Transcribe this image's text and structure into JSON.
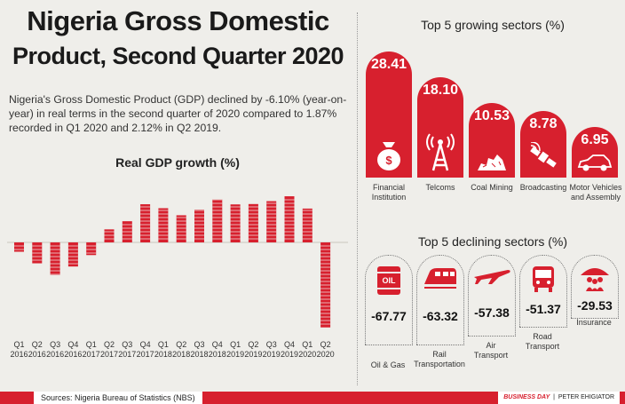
{
  "header": {
    "title_line1": "Nigeria Gross Domestic",
    "title_line2": "Product, Second Quarter 2020",
    "description": "Nigeria's Gross Domestic Product (GDP) declined by -6.10% (year-on-year) in real terms in the second quarter of 2020 compared to 1.87% recorded in Q1 2020 and 2.12% in Q2 2019."
  },
  "colors": {
    "positive": "#d7202e",
    "negative": "#d7202e",
    "background": "#efeeea"
  },
  "chart_data": [
    {
      "type": "bar",
      "title": "Real GDP growth (%)",
      "categories": [
        "Q1 2016",
        "Q2 2016",
        "Q3 2016",
        "Q4 2016",
        "Q1 2017",
        "Q2 2017",
        "Q3 2017",
        "Q4 2017",
        "Q1 2018",
        "Q2 2018",
        "Q3 2018",
        "Q4 2018",
        "Q1 2019",
        "Q2 2019",
        "Q3 2019",
        "Q4 2019",
        "Q1 2020",
        "Q2 2020"
      ],
      "category_labels": [
        [
          "Q1",
          "2016"
        ],
        [
          "Q2",
          "2016"
        ],
        [
          "Q3",
          "2016"
        ],
        [
          "Q4",
          "2016"
        ],
        [
          "Q1",
          "2017"
        ],
        [
          "Q2",
          "2017"
        ],
        [
          "Q3",
          "2017"
        ],
        [
          "Q4",
          "2017"
        ],
        [
          "Q1",
          "2018"
        ],
        [
          "Q2",
          "2018"
        ],
        [
          "Q3",
          "2018"
        ],
        [
          "Q4",
          "2018"
        ],
        [
          "Q1",
          "2019"
        ],
        [
          "Q2",
          "2019"
        ],
        [
          "Q3",
          "2019"
        ],
        [
          "Q4",
          "2019"
        ],
        [
          "Q1",
          "2020"
        ],
        [
          "Q2",
          "2020"
        ]
      ],
      "values": [
        -0.67,
        -1.5,
        -2.34,
        -1.73,
        -0.91,
        0.72,
        1.17,
        2.11,
        1.89,
        1.5,
        1.81,
        2.38,
        2.1,
        2.12,
        2.28,
        2.55,
        1.87,
        -6.1
      ],
      "ylim": [
        -6.5,
        2.7
      ],
      "xlabel": "",
      "ylabel": ""
    },
    {
      "type": "bar",
      "title": "Top 5 growing sectors (%)",
      "categories": [
        "Financial Institution",
        "Telcoms",
        "Coal Mining",
        "Broadcasting",
        "Motor Vehicles and Assembly"
      ],
      "values": [
        28.41,
        18.1,
        10.53,
        8.78,
        6.95
      ],
      "value_labels": [
        "28.41",
        "18.10",
        "10.53",
        "8.78",
        "6.95"
      ]
    },
    {
      "type": "bar",
      "title": "Top 5 declining sectors (%)",
      "categories": [
        "Oil & Gas",
        "Rail Transportation",
        "Air Transport",
        "Road Transport",
        "Insurance"
      ],
      "values": [
        -67.77,
        -63.32,
        -57.38,
        -51.37,
        -29.53
      ],
      "value_labels": [
        "-67.77",
        "-63.32",
        "-57.38",
        "-51.37",
        "-29.53"
      ]
    }
  ],
  "growing": {
    "title": "Top 5 growing sectors (%)",
    "items": [
      {
        "value": "28.41",
        "line1": "Financial",
        "line2": "Institution",
        "icon": "money-bag-icon"
      },
      {
        "value": "18.10",
        "line1": "Telcoms",
        "line2": "",
        "icon": "cell-tower-icon"
      },
      {
        "value": "10.53",
        "line1": "Coal Mining",
        "line2": "",
        "icon": "coal-icon"
      },
      {
        "value": "8.78",
        "line1": "Broadcasting",
        "line2": "",
        "icon": "satellite-icon"
      },
      {
        "value": "6.95",
        "line1": "Motor Vehicles",
        "line2": "and Assembly",
        "icon": "car-icon"
      }
    ]
  },
  "declining": {
    "title": "Top 5 declining sectors (%)",
    "items": [
      {
        "value": "-67.77",
        "line1": "Oil & Gas",
        "line2": "",
        "icon": "oil-barrel-icon",
        "icon_text": "OIL"
      },
      {
        "value": "-63.32",
        "line1": "Rail",
        "line2": "Transportation",
        "icon": "train-icon"
      },
      {
        "value": "-57.38",
        "line1": "Air",
        "line2": "Transport",
        "icon": "airplane-icon"
      },
      {
        "value": "-51.37",
        "line1": "Road",
        "line2": "Transport",
        "icon": "bus-icon"
      },
      {
        "value": "-29.53",
        "line1": "Insurance",
        "line2": "",
        "icon": "people-umbrella-icon"
      }
    ]
  },
  "footer": {
    "source": "Sources: Nigeria Bureau of Statistics (NBS)",
    "brand": "BUSINESS DAY",
    "author": "PETER EHIGIATOR"
  }
}
